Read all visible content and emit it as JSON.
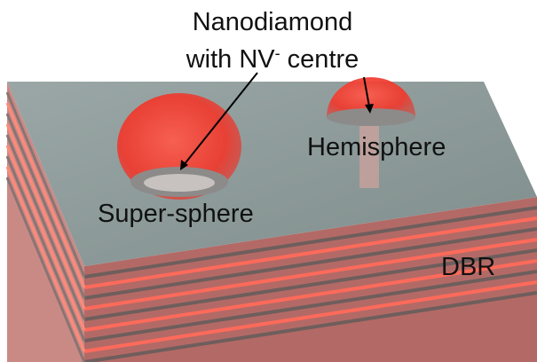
{
  "labels": {
    "nanodiamond_line1": "Nanodiamond",
    "nanodiamond_line2": {
      "before": "with NV",
      "superscript": "-",
      "after": " centre"
    },
    "super_sphere": "Super-sphere",
    "hemisphere": "Hemisphere",
    "dbr": "DBR"
  }
}
